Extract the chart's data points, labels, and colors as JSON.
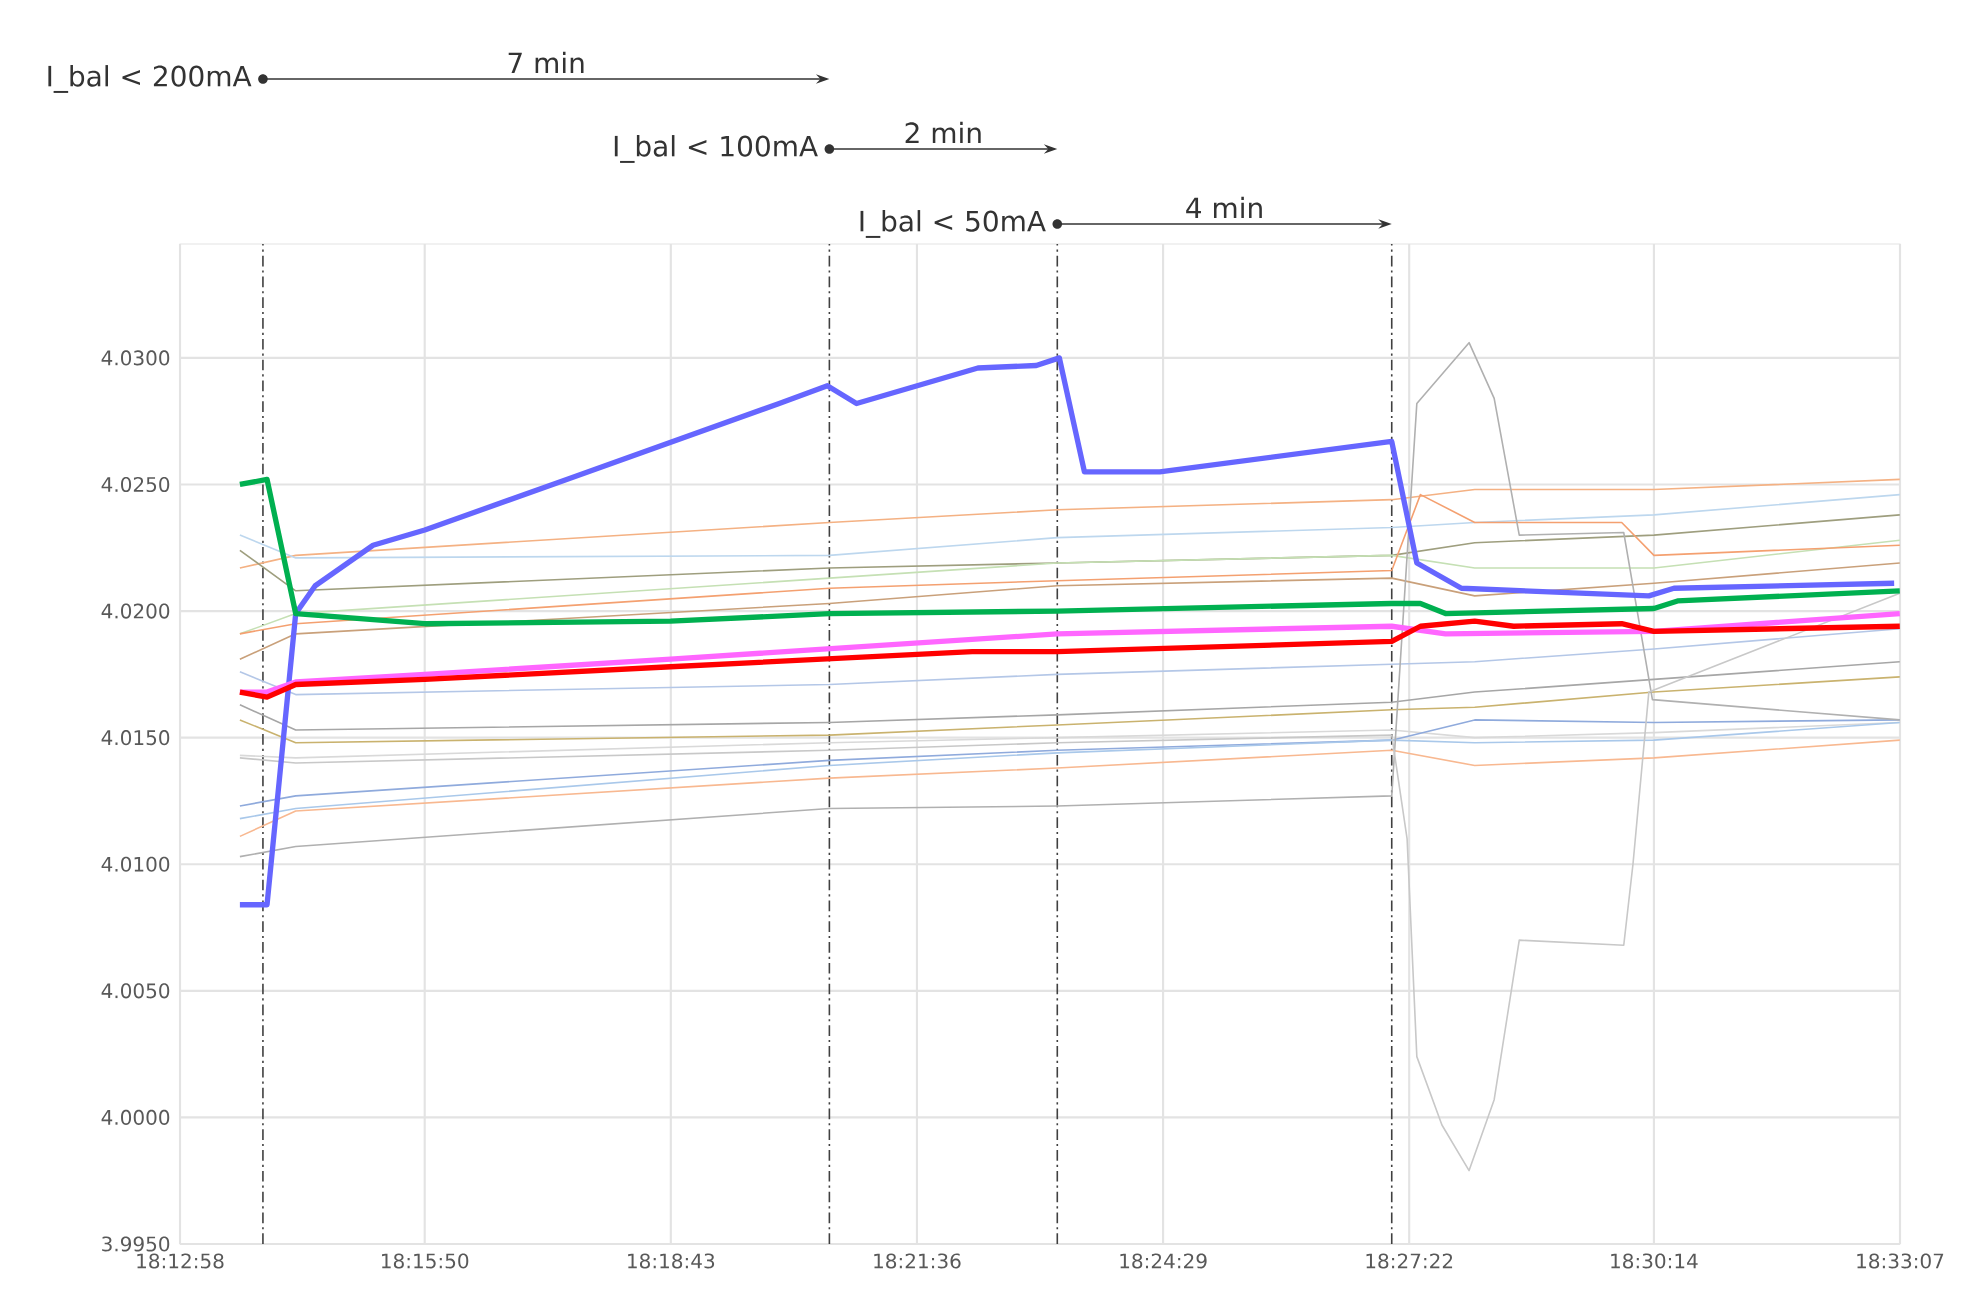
{
  "chart_data": {
    "type": "line",
    "xlim": [
      18.21611,
      18.55194
    ],
    "ylim": [
      3.995,
      4.0345
    ],
    "xticks": [
      {
        "value": 18.21611,
        "label": "18:12:58"
      },
      {
        "value": 18.26389,
        "label": "18:15:50"
      },
      {
        "value": 18.31194,
        "label": "18:18:43"
      },
      {
        "value": 18.36,
        "label": "18:21:36"
      },
      {
        "value": 18.40806,
        "label": "18:24:29"
      },
      {
        "value": 18.45611,
        "label": "18:27:22"
      },
      {
        "value": 18.50389,
        "label": "18:30:14"
      },
      {
        "value": 18.55194,
        "label": "18:33:07"
      }
    ],
    "yticks": [
      {
        "value": 3.995,
        "label": "3.9950"
      },
      {
        "value": 4.0,
        "label": "4.0000"
      },
      {
        "value": 4.005,
        "label": "4.0050"
      },
      {
        "value": 4.01,
        "label": "4.0100"
      },
      {
        "value": 4.015,
        "label": "4.0150"
      },
      {
        "value": 4.02,
        "label": "4.0200"
      },
      {
        "value": 4.025,
        "label": "4.0250"
      },
      {
        "value": 4.03,
        "label": "4.0300"
      }
    ],
    "grid": true,
    "marker": "none",
    "line_style": "solid",
    "ref_lines": [
      {
        "axis": "x",
        "value": 18.2323,
        "color": "#404040"
      },
      {
        "axis": "x",
        "value": 18.3429,
        "color": "#404040"
      },
      {
        "axis": "x",
        "value": 18.3874,
        "color": "#404040"
      },
      {
        "axis": "x",
        "value": 18.4527,
        "color": "#404040"
      }
    ],
    "annotations": [
      "I_bal < 200mA",
      "7 min",
      "I_bal < 100mA",
      "2 min",
      "I_bal < 50mA",
      "4 min"
    ],
    "series": [
      {
        "color": "#f4b183",
        "x": [
          18.2278,
          18.2387,
          18.3429,
          18.3874,
          18.4527,
          18.4689,
          18.5039,
          18.5519
        ],
        "values": [
          4.0217,
          4.0222,
          4.0235,
          4.024,
          4.0244,
          4.0248,
          4.0248,
          4.0252
        ]
      },
      {
        "color": "#bdd7ee",
        "x": [
          18.2278,
          18.2387,
          18.3429,
          18.3874,
          18.4527,
          18.4689,
          18.5039,
          18.5519
        ],
        "values": [
          4.023,
          4.0221,
          4.0222,
          4.0229,
          4.0233,
          4.0235,
          4.0238,
          4.0246
        ]
      },
      {
        "color": "#9e9e7e",
        "x": [
          18.2278,
          18.2387,
          18.3429,
          18.3874,
          18.4527,
          18.4689,
          18.5039,
          18.5519
        ],
        "values": [
          4.0224,
          4.0208,
          4.0217,
          4.0219,
          4.0222,
          4.0227,
          4.023,
          4.0238
        ]
      },
      {
        "color": "#c5e0b4",
        "x": [
          18.2278,
          18.2387,
          18.3429,
          18.3874,
          18.4527,
          18.4689,
          18.5039,
          18.5519
        ],
        "values": [
          4.0191,
          4.0199,
          4.0213,
          4.0219,
          4.0222,
          4.0217,
          4.0217,
          4.0228
        ]
      },
      {
        "color": "#f4a070",
        "x": [
          18.2278,
          18.2387,
          18.3429,
          18.3874,
          18.4527,
          18.4583,
          18.4689,
          18.4976,
          18.5039,
          18.5519
        ],
        "values": [
          4.0191,
          4.0195,
          4.0209,
          4.0212,
          4.0216,
          4.0246,
          4.0235,
          4.0235,
          4.0222,
          4.0226
        ]
      },
      {
        "color": "#c9a07a",
        "x": [
          18.2278,
          18.2387,
          18.3429,
          18.3874,
          18.4527,
          18.4689,
          18.5039,
          18.5519
        ],
        "values": [
          4.0181,
          4.0191,
          4.0203,
          4.021,
          4.0213,
          4.0206,
          4.0211,
          4.0219
        ]
      },
      {
        "color": "#b4c7e7",
        "x": [
          18.2278,
          18.2387,
          18.3429,
          18.3874,
          18.4527,
          18.4689,
          18.5039,
          18.5519
        ],
        "values": [
          4.0176,
          4.0167,
          4.0171,
          4.0175,
          4.0179,
          4.018,
          4.0185,
          4.0193
        ]
      },
      {
        "color": "#a6a6a6",
        "x": [
          18.2278,
          18.2387,
          18.3429,
          18.3874,
          18.4527,
          18.4689,
          18.5039,
          18.5519
        ],
        "values": [
          4.0163,
          4.0153,
          4.0156,
          4.0159,
          4.0164,
          4.0168,
          4.0173,
          4.018
        ]
      },
      {
        "color": "#c9b26e",
        "x": [
          18.2278,
          18.2387,
          18.3429,
          18.3874,
          18.4527,
          18.4689,
          18.5039,
          18.5519
        ],
        "values": [
          4.0157,
          4.0148,
          4.0151,
          4.0155,
          4.0161,
          4.0162,
          4.0168,
          4.0174
        ]
      },
      {
        "color": "#d9d9d9",
        "x": [
          18.2278,
          18.2387,
          18.3429,
          18.3874,
          18.4527,
          18.4689,
          18.5039,
          18.5519
        ],
        "values": [
          4.0143,
          4.0142,
          4.0148,
          4.015,
          4.0153,
          4.015,
          4.0152,
          4.0156
        ]
      },
      {
        "color": "#8faadc",
        "x": [
          18.2278,
          18.2387,
          18.3429,
          18.3874,
          18.4527,
          18.4689,
          18.5039,
          18.5519
        ],
        "values": [
          4.0123,
          4.0127,
          4.0141,
          4.0145,
          4.0149,
          4.0157,
          4.0156,
          4.0157
        ]
      },
      {
        "color": "#a9c8ea",
        "x": [
          18.2278,
          18.2387,
          18.3429,
          18.3874,
          18.4527,
          18.4689,
          18.5039,
          18.5519
        ],
        "values": [
          4.0118,
          4.0122,
          4.0139,
          4.0144,
          4.0149,
          4.0148,
          4.0149,
          4.0156
        ]
      },
      {
        "color": "#f8b890",
        "x": [
          18.2278,
          18.2387,
          18.3429,
          18.3874,
          18.4527,
          18.4689,
          18.5039,
          18.5519
        ],
        "values": [
          4.0111,
          4.0121,
          4.0134,
          4.0138,
          4.0145,
          4.0139,
          4.0142,
          4.0149
        ]
      },
      {
        "color": "#b0b0b0",
        "x": [
          18.2278,
          18.2387,
          18.3429,
          18.3874,
          18.4527,
          18.4576,
          18.4678,
          18.4727,
          18.4776,
          18.498,
          18.5036,
          18.5519
        ],
        "values": [
          4.0103,
          4.0107,
          4.0122,
          4.0123,
          4.0127,
          4.0282,
          4.0306,
          4.0284,
          4.023,
          4.0231,
          4.0165,
          4.0157
        ]
      },
      {
        "color": "#c8c8c8",
        "x": [
          18.2278,
          18.2387,
          18.3429,
          18.3874,
          18.4527,
          18.4557,
          18.4576,
          18.4625,
          18.4678,
          18.4727,
          18.4776,
          18.498,
          18.4998,
          18.5029,
          18.5519
        ],
        "values": [
          4.0142,
          4.014,
          4.0145,
          4.0148,
          4.0151,
          4.011,
          4.0024,
          3.9997,
          3.9979,
          4.0007,
          4.007,
          4.0068,
          4.01,
          4.0168,
          4.0207
        ]
      },
      {
        "color": "#6666ff",
        "x": [
          18.2278,
          18.2331,
          18.2387,
          18.2425,
          18.2538,
          18.2639,
          18.2916,
          18.3331,
          18.3425,
          18.3482,
          18.3719,
          18.3833,
          18.3878,
          18.3927,
          18.4074,
          18.4527,
          18.4576,
          18.4663,
          18.5029,
          18.5078,
          18.5508
        ],
        "values": [
          4.0084,
          4.0084,
          4.0199,
          4.021,
          4.0226,
          4.0232,
          4.0252,
          4.0282,
          4.0289,
          4.0282,
          4.0296,
          4.0297,
          4.03,
          4.0255,
          4.0255,
          4.0267,
          4.0219,
          4.0209,
          4.0206,
          4.0209,
          4.0211
        ]
      },
      {
        "color": "#00b050",
        "x": [
          18.2278,
          18.2331,
          18.2387,
          18.2639,
          18.3119,
          18.3429,
          18.3874,
          18.4527,
          18.4583,
          18.4632,
          18.5039,
          18.5085,
          18.5519
        ],
        "values": [
          4.025,
          4.0252,
          4.0199,
          4.0195,
          4.0196,
          4.0199,
          4.02,
          4.0203,
          4.0203,
          4.0199,
          4.0201,
          4.0204,
          4.0208
        ]
      },
      {
        "color": "#ff66ff",
        "x": [
          18.2278,
          18.2331,
          18.2387,
          18.2639,
          18.3119,
          18.3874,
          18.4527,
          18.4632,
          18.5039,
          18.5519
        ],
        "values": [
          4.0168,
          4.0168,
          4.0172,
          4.0175,
          4.0181,
          4.0191,
          4.0194,
          4.0191,
          4.0192,
          4.0199
        ]
      },
      {
        "color": "#ff0000",
        "x": [
          18.2278,
          18.2331,
          18.2387,
          18.2639,
          18.3119,
          18.3708,
          18.3874,
          18.4527,
          18.4583,
          18.4689,
          18.4765,
          18.4976,
          18.5039,
          18.5519
        ],
        "values": [
          4.0168,
          4.0166,
          4.0171,
          4.0173,
          4.0178,
          4.0184,
          4.0184,
          4.0188,
          4.0194,
          4.0196,
          4.0194,
          4.0195,
          4.0192,
          4.0194
        ]
      }
    ]
  }
}
